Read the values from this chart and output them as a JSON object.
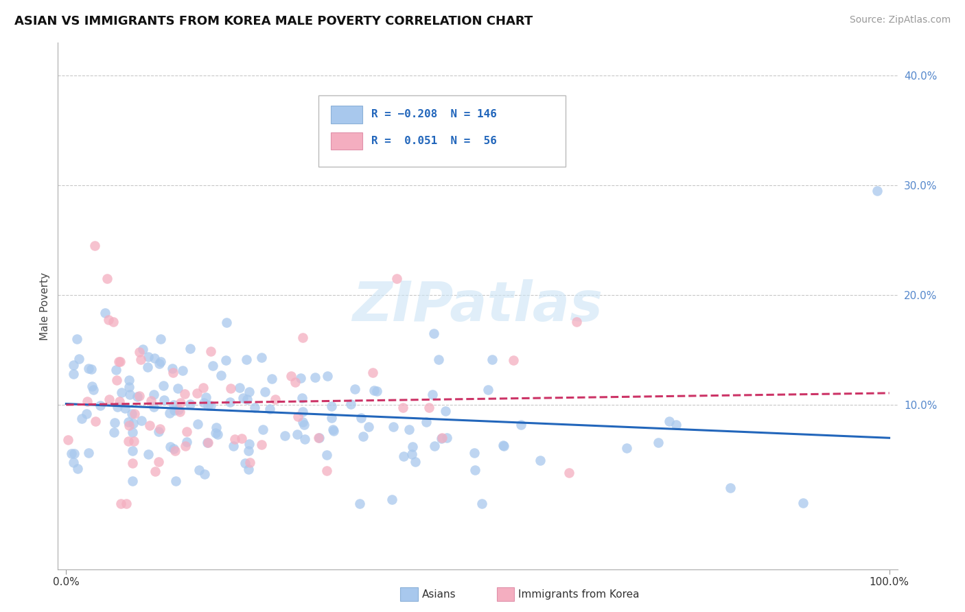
{
  "title": "ASIAN VS IMMIGRANTS FROM KOREA MALE POVERTY CORRELATION CHART",
  "source": "Source: ZipAtlas.com",
  "ylabel": "Male Poverty",
  "R_asian": -0.208,
  "N_asian": 146,
  "R_korea": 0.051,
  "N_korea": 56,
  "legend_label_asian": "Asians",
  "legend_label_korea": "Immigrants from Korea",
  "color_asian": "#a8c8ed",
  "color_korea": "#f4aec0",
  "line_color_asian": "#2266bb",
  "line_color_korea": "#cc3366",
  "ylim_low": -0.05,
  "ylim_high": 0.43,
  "xlim_low": -0.01,
  "xlim_high": 1.01,
  "ytick_vals": [
    0.1,
    0.2,
    0.3,
    0.4
  ],
  "ytick_labels": [
    "10.0%",
    "20.0%",
    "30.0%",
    "40.0%"
  ],
  "xtick_vals": [
    0.0,
    1.0
  ],
  "xtick_labels": [
    "0.0%",
    "100.0%"
  ]
}
